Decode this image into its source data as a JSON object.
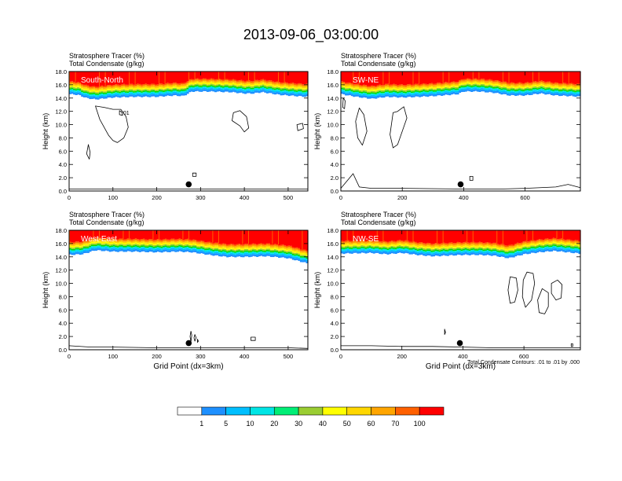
{
  "title": "2013-09-06_03:00:00",
  "shared": {
    "tracer_label": "Stratosphere Tracer   (%)",
    "condensate_label": "Total Condensate   (g/kg)",
    "ylabel": "Height (km)",
    "xlabel": "Grid Point (dx=3km)",
    "contour_note": "Total Condensate Contours: .01 to .01 by .000"
  },
  "colors": {
    "tracer_levels": [
      "#ffffff",
      "#1e90ff",
      "#00bfff",
      "#00e5e5",
      "#00ee76",
      "#00dd00",
      "#9acd32",
      "#ffff00",
      "#ffd700",
      "#ffa500",
      "#ff6000",
      "#ff0000"
    ],
    "contour": "#000000"
  },
  "colorbar": {
    "labels": [
      "1",
      "5",
      "10",
      "20",
      "30",
      "40",
      "50",
      "60",
      "70",
      "100"
    ]
  },
  "chart_data": [
    {
      "type": "heatmap",
      "panel": "South-North",
      "xlim": [
        0,
        545
      ],
      "ylim": [
        0,
        18
      ],
      "xticks": [
        0,
        100,
        200,
        300,
        400,
        500
      ],
      "yticks": [
        0,
        2,
        4,
        6,
        8,
        10,
        12,
        14,
        16,
        18
      ],
      "tropopause_km": [
        [
          0,
          14.6
        ],
        [
          20,
          14.5
        ],
        [
          40,
          14.0
        ],
        [
          60,
          13.8
        ],
        [
          100,
          14.1
        ],
        [
          150,
          14.2
        ],
        [
          200,
          14.2
        ],
        [
          240,
          14.4
        ],
        [
          260,
          14.3
        ],
        [
          280,
          15.0
        ],
        [
          320,
          15.0
        ],
        [
          370,
          14.9
        ],
        [
          400,
          14.7
        ],
        [
          420,
          14.7
        ],
        [
          440,
          14.9
        ],
        [
          480,
          14.5
        ],
        [
          520,
          14.3
        ],
        [
          545,
          14.2
        ]
      ],
      "condensate_contours": [
        [
          [
            60,
            12.8
          ],
          [
            70,
            10.8
          ],
          [
            80,
            9.6
          ],
          [
            90,
            8.4
          ],
          [
            100,
            7.6
          ],
          [
            110,
            7.3
          ],
          [
            125,
            8.0
          ],
          [
            135,
            9.6
          ],
          [
            130,
            11.2
          ],
          [
            118,
            12.3
          ],
          [
            100,
            12.3
          ],
          [
            80,
            12.6
          ]
        ],
        [
          [
            115,
            12.1
          ],
          [
            120,
            11.9
          ],
          [
            122,
            11.4
          ],
          [
            115,
            11.5
          ]
        ],
        [
          [
            44,
            7.0
          ],
          [
            48,
            5.8
          ],
          [
            46,
            4.8
          ],
          [
            40,
            5.6
          ]
        ],
        [
          [
            282,
            2.7
          ],
          [
            290,
            2.7
          ],
          [
            290,
            2.2
          ],
          [
            282,
            2.2
          ]
        ],
        [
          [
            375,
            11.8
          ],
          [
            390,
            12.1
          ],
          [
            405,
            11.2
          ],
          [
            410,
            9.5
          ],
          [
            400,
            8.9
          ],
          [
            390,
            9.8
          ],
          [
            372,
            10.6
          ]
        ],
        [
          [
            520,
            10.0
          ],
          [
            533,
            10.2
          ],
          [
            535,
            9.4
          ],
          [
            522,
            9.1
          ]
        ]
      ],
      "terrain_km": [
        [
          0,
          0.3
        ],
        [
          100,
          0.3
        ],
        [
          200,
          0.3
        ],
        [
          320,
          0.3
        ],
        [
          420,
          0.3
        ],
        [
          545,
          0.3
        ]
      ],
      "marker": {
        "x": 273,
        "y": 1.0
      },
      "contour_labels": [
        {
          "text": ".01",
          "x": 120,
          "y": 11.5
        }
      ],
      "show_xlabel": false,
      "show_note": false
    },
    {
      "type": "heatmap",
      "panel": "SW-NE",
      "xlim": [
        0,
        780
      ],
      "ylim": [
        0,
        18
      ],
      "xticks": [
        0,
        200,
        400,
        600
      ],
      "yticks": [
        0,
        2,
        4,
        6,
        8,
        10,
        12,
        14,
        16,
        18
      ],
      "tropopause_km": [
        [
          0,
          14.6
        ],
        [
          50,
          14.2
        ],
        [
          100,
          13.9
        ],
        [
          150,
          14.2
        ],
        [
          200,
          14.1
        ],
        [
          250,
          14.2
        ],
        [
          300,
          14.3
        ],
        [
          380,
          14.6
        ],
        [
          400,
          15.0
        ],
        [
          450,
          15.0
        ],
        [
          500,
          14.8
        ],
        [
          550,
          14.4
        ],
        [
          600,
          14.4
        ],
        [
          650,
          14.7
        ],
        [
          700,
          14.4
        ],
        [
          750,
          14.3
        ],
        [
          780,
          14.2
        ]
      ],
      "condensate_contours": [
        [
          [
            60,
            12.5
          ],
          [
            75,
            11.5
          ],
          [
            85,
            9.0
          ],
          [
            70,
            6.9
          ],
          [
            55,
            8.0
          ],
          [
            48,
            10.5
          ]
        ],
        [
          [
            170,
            11.8
          ],
          [
            185,
            12.0
          ],
          [
            205,
            12.7
          ],
          [
            215,
            11.0
          ],
          [
            200,
            9.0
          ],
          [
            185,
            7.0
          ],
          [
            170,
            6.5
          ],
          [
            160,
            8.5
          ]
        ],
        [
          [
            8,
            14.0
          ],
          [
            14,
            13.6
          ],
          [
            12,
            12.4
          ],
          [
            6,
            12.6
          ]
        ],
        [
          [
            420,
            2.2
          ],
          [
            430,
            2.2
          ],
          [
            430,
            1.6
          ],
          [
            420,
            1.6
          ]
        ]
      ],
      "terrain_km": [
        [
          0,
          0.4
        ],
        [
          40,
          2.6
        ],
        [
          60,
          0.6
        ],
        [
          100,
          0.4
        ],
        [
          200,
          0.4
        ],
        [
          400,
          0.3
        ],
        [
          520,
          0.3
        ],
        [
          600,
          0.4
        ],
        [
          700,
          0.6
        ],
        [
          740,
          1.0
        ],
        [
          780,
          0.5
        ]
      ],
      "marker": {
        "x": 390,
        "y": 1.0
      },
      "contour_labels": [],
      "show_xlabel": false,
      "show_note": false
    },
    {
      "type": "heatmap",
      "panel": "West-East",
      "xlim": [
        0,
        545
      ],
      "ylim": [
        0,
        18
      ],
      "xticks": [
        0,
        100,
        200,
        300,
        400,
        500
      ],
      "yticks": [
        0,
        2,
        4,
        6,
        8,
        10,
        12,
        14,
        16,
        18
      ],
      "tropopause_km": [
        [
          0,
          14.3
        ],
        [
          30,
          14.4
        ],
        [
          60,
          15.0
        ],
        [
          100,
          14.8
        ],
        [
          150,
          14.8
        ],
        [
          200,
          14.7
        ],
        [
          250,
          14.8
        ],
        [
          280,
          14.7
        ],
        [
          300,
          14.5
        ],
        [
          320,
          14.3
        ],
        [
          360,
          14.0
        ],
        [
          400,
          14.0
        ],
        [
          450,
          14.1
        ],
        [
          500,
          13.8
        ],
        [
          545,
          13.0
        ]
      ],
      "condensate_contours": [
        [
          [
            278,
            2.8
          ],
          [
            280,
            2.2
          ],
          [
            278,
            1.2
          ],
          [
            276,
            2.0
          ]
        ],
        [
          [
            287,
            2.3
          ],
          [
            290,
            1.8
          ],
          [
            287,
            1.3
          ],
          [
            285,
            1.8
          ]
        ],
        [
          [
            293,
            1.6
          ],
          [
            295,
            1.3
          ],
          [
            293,
            1.1
          ]
        ],
        [
          [
            415,
            1.9
          ],
          [
            425,
            1.9
          ],
          [
            425,
            1.4
          ],
          [
            415,
            1.4
          ]
        ]
      ],
      "terrain_km": [
        [
          0,
          0.6
        ],
        [
          50,
          0.4
        ],
        [
          100,
          0.4
        ],
        [
          200,
          0.3
        ],
        [
          300,
          0.3
        ],
        [
          400,
          0.3
        ],
        [
          500,
          0.3
        ],
        [
          545,
          0.2
        ]
      ],
      "marker": {
        "x": 273,
        "y": 1.0
      },
      "contour_labels": [],
      "show_xlabel": true,
      "show_note": false
    },
    {
      "type": "heatmap",
      "panel": "NW-SE",
      "xlim": [
        0,
        785
      ],
      "ylim": [
        0,
        18
      ],
      "xticks": [
        0,
        200,
        400,
        600
      ],
      "yticks": [
        0,
        2,
        4,
        6,
        8,
        10,
        12,
        14,
        16,
        18
      ],
      "tropopause_km": [
        [
          0,
          14.5
        ],
        [
          100,
          14.6
        ],
        [
          150,
          14.4
        ],
        [
          200,
          14.6
        ],
        [
          250,
          14.3
        ],
        [
          300,
          14.1
        ],
        [
          350,
          14.2
        ],
        [
          400,
          14.3
        ],
        [
          450,
          14.3
        ],
        [
          500,
          14.2
        ],
        [
          550,
          13.8
        ],
        [
          600,
          14.4
        ],
        [
          650,
          14.7
        ],
        [
          700,
          14.9
        ],
        [
          785,
          14.5
        ]
      ],
      "condensate_contours": [
        [
          [
            555,
            11.0
          ],
          [
            575,
            10.8
          ],
          [
            580,
            9.0
          ],
          [
            570,
            7.2
          ],
          [
            555,
            7.0
          ],
          [
            548,
            9.0
          ]
        ],
        [
          [
            610,
            11.7
          ],
          [
            630,
            11.5
          ],
          [
            635,
            10.0
          ],
          [
            625,
            7.5
          ],
          [
            605,
            6.4
          ],
          [
            595,
            8.0
          ],
          [
            598,
            10.5
          ]
        ],
        [
          [
            660,
            9.2
          ],
          [
            680,
            8.6
          ],
          [
            680,
            6.5
          ],
          [
            668,
            5.4
          ],
          [
            650,
            5.6
          ],
          [
            645,
            7.5
          ]
        ],
        [
          [
            690,
            10.0
          ],
          [
            710,
            10.5
          ],
          [
            725,
            9.8
          ],
          [
            722,
            7.8
          ],
          [
            705,
            7.5
          ],
          [
            690,
            8.5
          ]
        ],
        [
          [
            340,
            3.1
          ],
          [
            343,
            2.6
          ],
          [
            340,
            2.3
          ]
        ],
        [
          [
            755,
            0.9
          ],
          [
            760,
            0.9
          ],
          [
            760,
            0.5
          ],
          [
            755,
            0.5
          ]
        ]
      ],
      "terrain_km": [
        [
          0,
          0.6
        ],
        [
          100,
          0.6
        ],
        [
          200,
          0.5
        ],
        [
          300,
          0.5
        ],
        [
          400,
          0.4
        ],
        [
          500,
          0.3
        ],
        [
          600,
          0.3
        ],
        [
          700,
          0.3
        ],
        [
          785,
          0.3
        ]
      ],
      "marker": {
        "x": 390,
        "y": 1.0
      },
      "contour_labels": [],
      "show_xlabel": true,
      "show_note": true
    }
  ]
}
